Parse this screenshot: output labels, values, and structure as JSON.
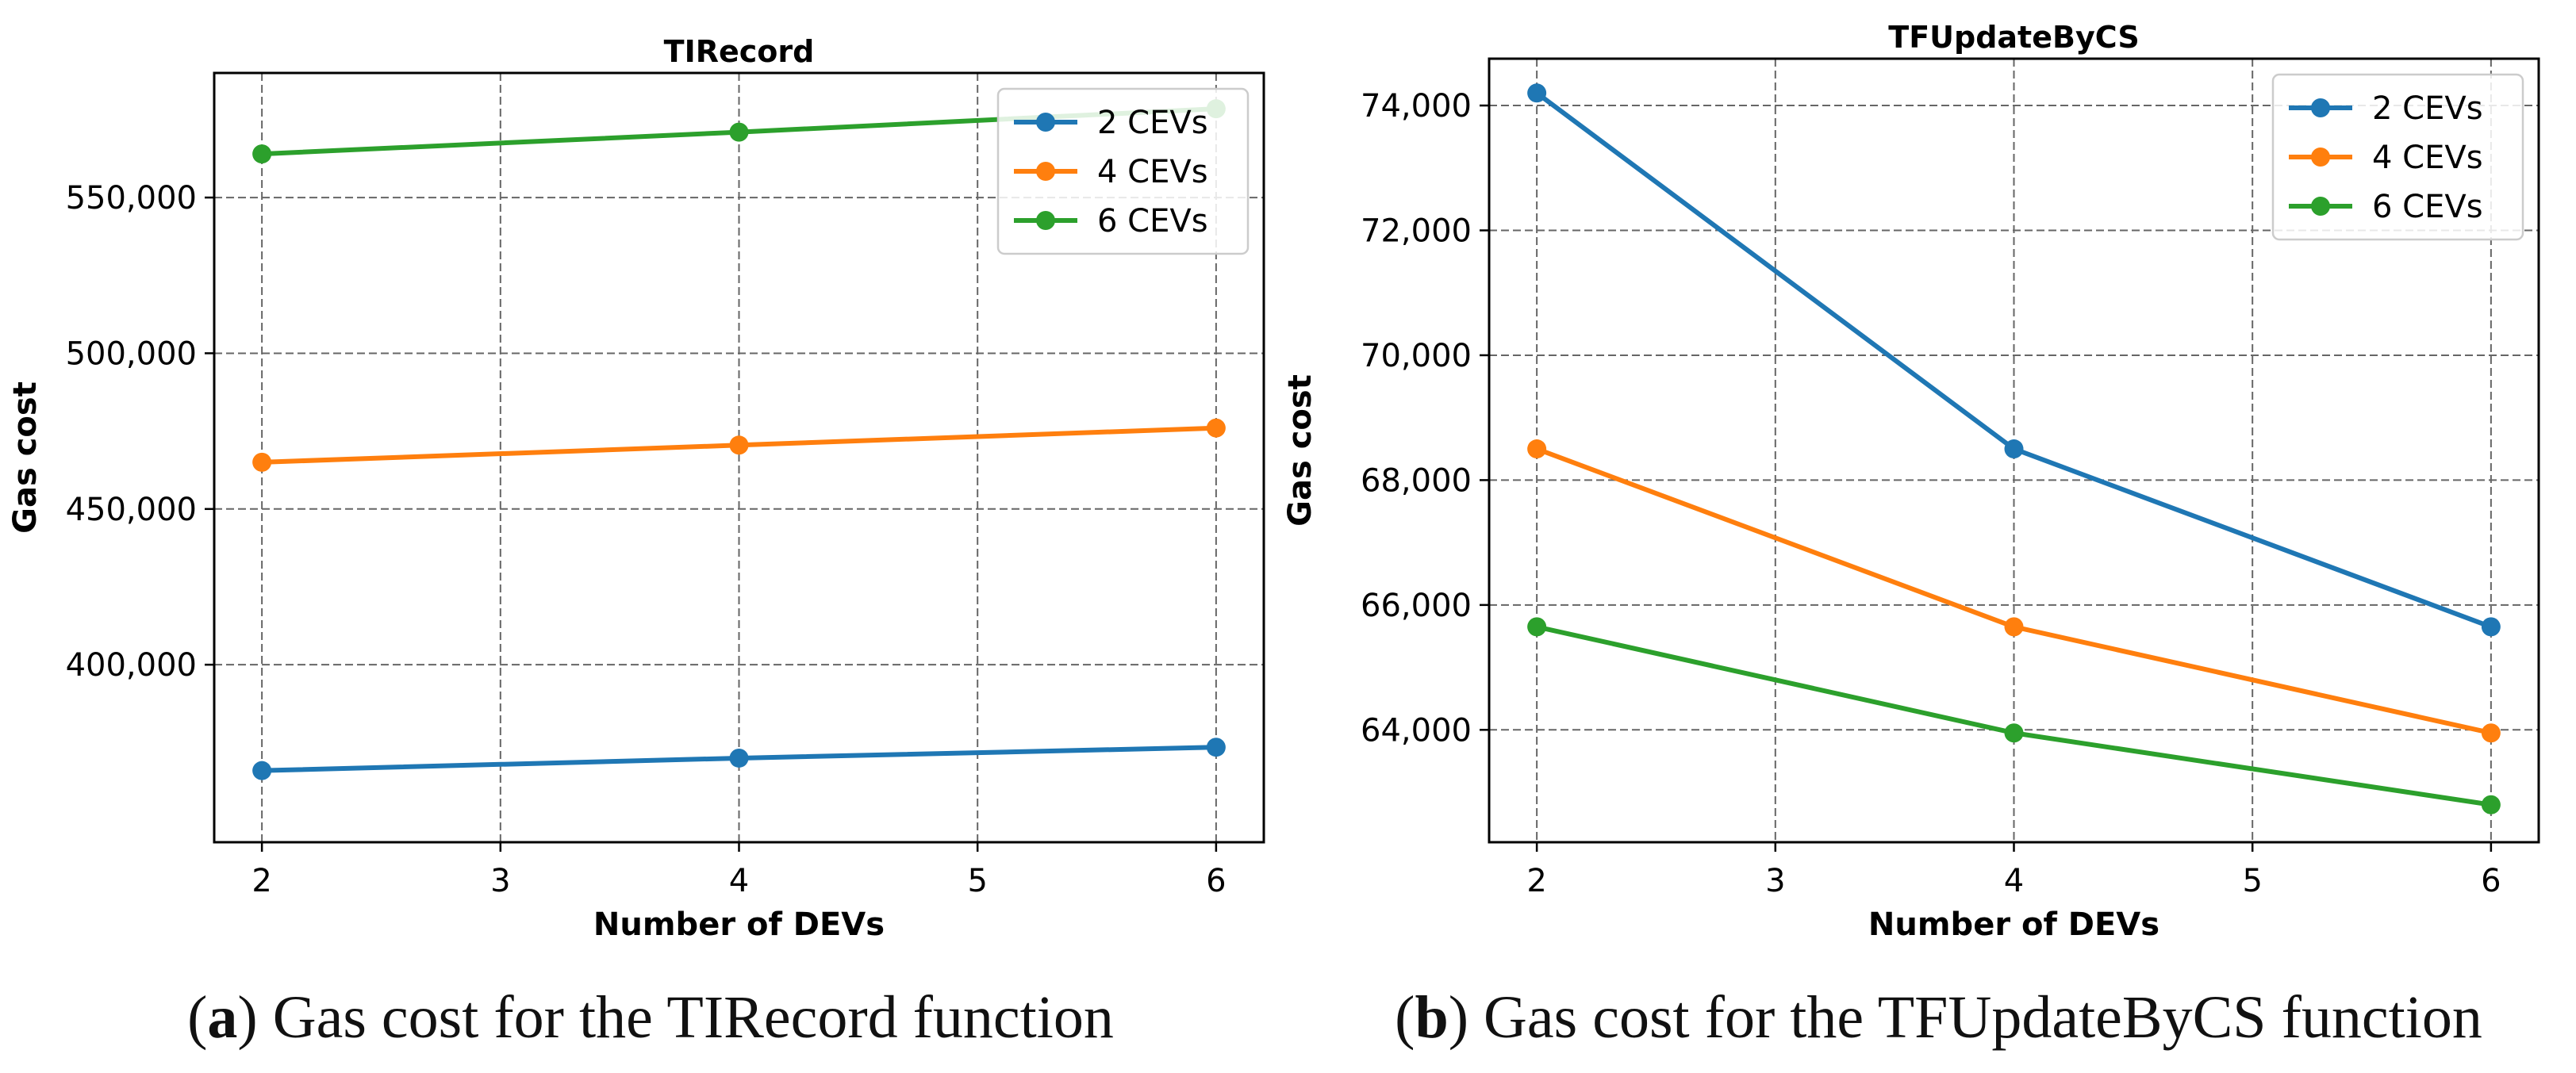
{
  "chart_data": [
    {
      "type": "line",
      "title": "TIRecord",
      "xlabel": "Number of DEVs",
      "ylabel": "Gas cost",
      "xlim": [
        1.8,
        6.2
      ],
      "ylim": [
        343000,
        590000
      ],
      "x_ticks": [
        2,
        3,
        4,
        5,
        6
      ],
      "y_ticks": [
        400000,
        450000,
        500000,
        550000
      ],
      "y_tick_labels": [
        "400,000",
        "450,000",
        "500,000",
        "550,000"
      ],
      "grid": true,
      "legend_position": "top-right",
      "series": [
        {
          "name": "2 CEVs",
          "color": "#1f77b4",
          "x": [
            2,
            4,
            6
          ],
          "values": [
            366000,
            370000,
            373500
          ]
        },
        {
          "name": "4 CEVs",
          "color": "#ff7f0e",
          "x": [
            2,
            4,
            6
          ],
          "values": [
            465000,
            470500,
            476000
          ]
        },
        {
          "name": "6 CEVs",
          "color": "#2ca02c",
          "x": [
            2,
            4,
            6
          ],
          "values": [
            564000,
            571000,
            578500
          ]
        }
      ]
    },
    {
      "type": "line",
      "title": "TFUpdateByCS",
      "xlabel": "Number of DEVs",
      "ylabel": "Gas cost",
      "xlim": [
        1.8,
        6.2
      ],
      "ylim": [
        62200,
        74750
      ],
      "x_ticks": [
        2,
        3,
        4,
        5,
        6
      ],
      "y_ticks": [
        64000,
        66000,
        68000,
        70000,
        72000,
        74000
      ],
      "y_tick_labels": [
        "64,000",
        "66,000",
        "68,000",
        "70,000",
        "72,000",
        "74,000"
      ],
      "grid": true,
      "legend_position": "top-right",
      "series": [
        {
          "name": "2 CEVs",
          "color": "#1f77b4",
          "x": [
            2,
            4,
            6
          ],
          "values": [
            74200,
            68500,
            65650
          ]
        },
        {
          "name": "4 CEVs",
          "color": "#ff7f0e",
          "x": [
            2,
            4,
            6
          ],
          "values": [
            68500,
            65650,
            63950
          ]
        },
        {
          "name": "6 CEVs",
          "color": "#2ca02c",
          "x": [
            2,
            4,
            6
          ],
          "values": [
            65650,
            63950,
            62800
          ]
        }
      ]
    }
  ],
  "captions": {
    "a": {
      "label": "(a)",
      "text": " Gas cost for the TIRecord function"
    },
    "b": {
      "label": "(b)",
      "text": " Gas cost for the TFUpdateByCS function"
    }
  }
}
